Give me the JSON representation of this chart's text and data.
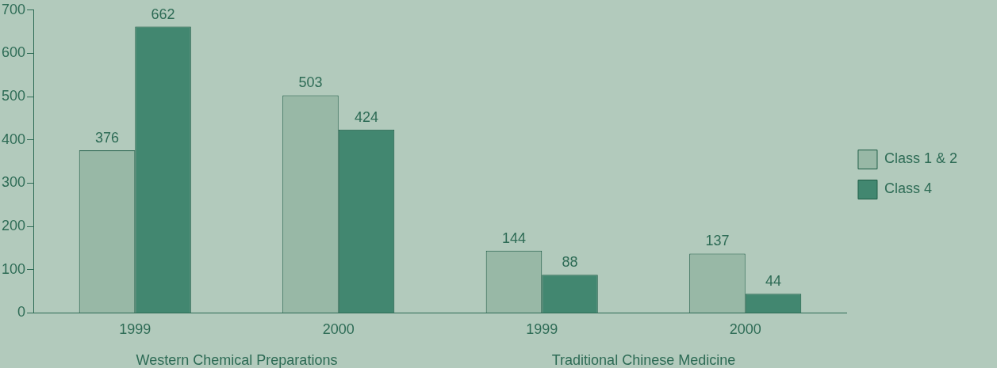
{
  "chart_data": {
    "type": "bar",
    "categories": [
      "1999",
      "2000",
      "1999",
      "2000"
    ],
    "series": [
      {
        "name": "Class 1 & 2",
        "color": "#98b8a6",
        "values": [
          376,
          503,
          144,
          137
        ]
      },
      {
        "name": "Class 4",
        "color": "#428770",
        "values": [
          662,
          424,
          88,
          44
        ]
      }
    ],
    "ylim": [
      0,
      700
    ],
    "yticks": [
      0,
      100,
      200,
      300,
      400,
      500,
      600,
      700
    ],
    "data_labels": true,
    "grid": false,
    "legend": "right",
    "annotations": [
      "Western Chemical Preparations",
      "Traditional Chinese Medicine"
    ]
  }
}
